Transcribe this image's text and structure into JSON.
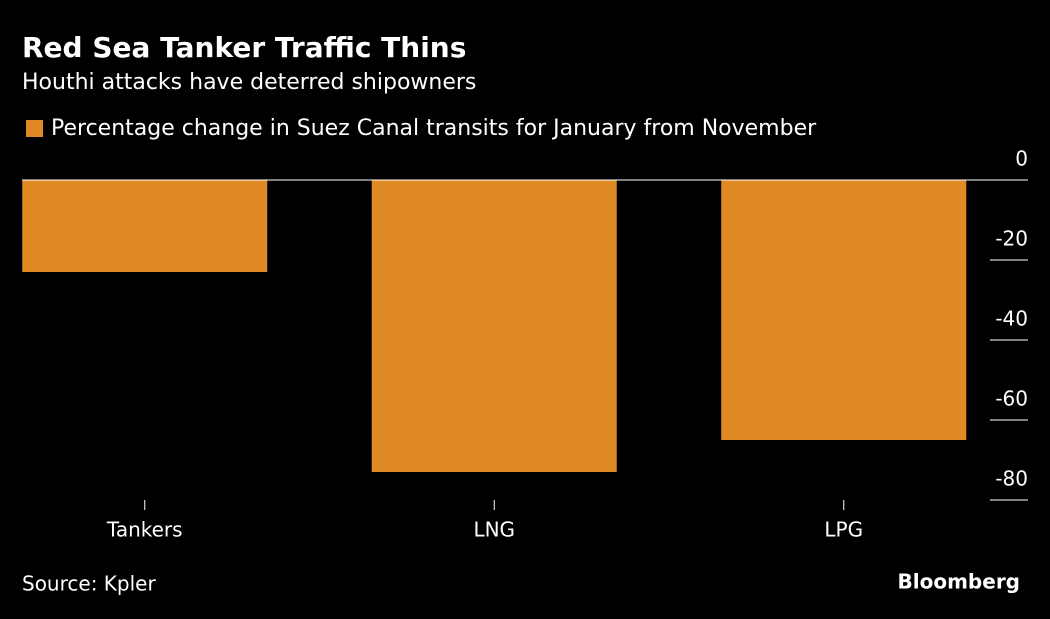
{
  "chart_data": {
    "type": "bar",
    "title": "Red Sea Tanker Traffic Thins",
    "subtitle": "Houthi attacks have deterred shipowners",
    "series": [
      {
        "name": "Percentage change in Suez Canal transits for January from November",
        "color": "#e08a25",
        "values": [
          -23,
          -73,
          -65
        ]
      }
    ],
    "categories": [
      "Tankers",
      "LNG",
      "LPG"
    ],
    "ylim": [
      -80,
      0
    ],
    "yticks": [
      0,
      -20,
      -40,
      -60,
      -80
    ],
    "source": "Source: Kpler",
    "brand": "Bloomberg"
  }
}
